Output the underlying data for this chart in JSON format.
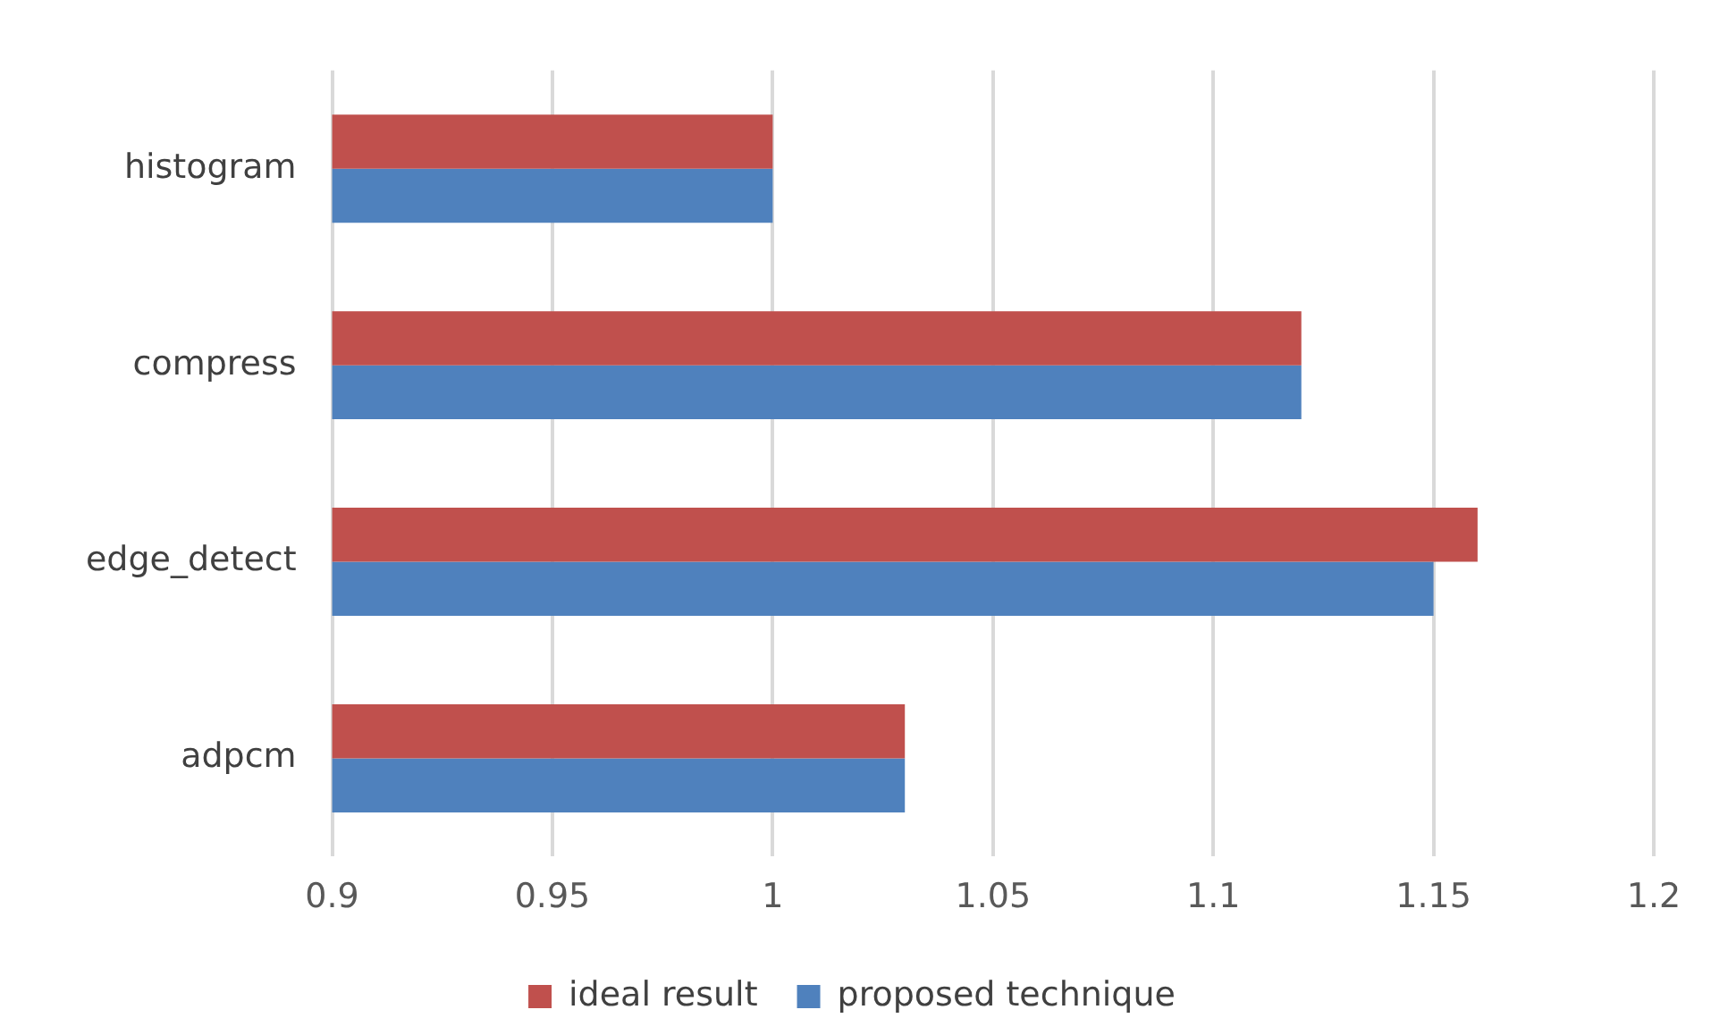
{
  "chart_data": {
    "type": "bar",
    "orientation": "horizontal",
    "categories": [
      "histogram",
      "compress",
      "edge_detect",
      "adpcm"
    ],
    "series": [
      {
        "name": "ideal result",
        "color": "#c0504d",
        "values": [
          1.0,
          1.12,
          1.16,
          1.03
        ]
      },
      {
        "name": "proposed technique",
        "color": "#4f81bd",
        "values": [
          1.0,
          1.12,
          1.15,
          1.03
        ]
      }
    ],
    "xlim": [
      0.9,
      1.2
    ],
    "xticks": [
      0.9,
      0.95,
      1,
      1.05,
      1.1,
      1.15,
      1.2
    ],
    "grid": "x",
    "legend": "bottom"
  }
}
